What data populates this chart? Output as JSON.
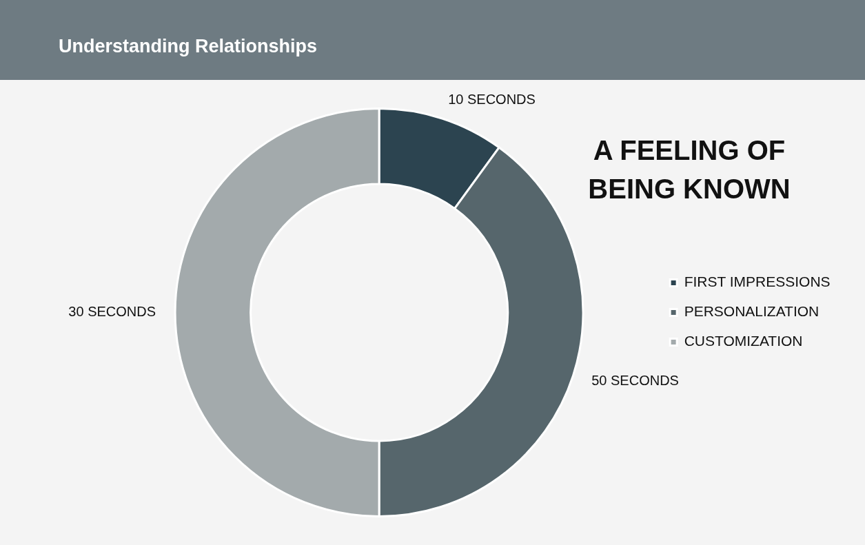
{
  "chart_data": {
    "type": "donut",
    "title": "Understanding Relationships",
    "subtitle": "A FEELING OF BEING KNOWN",
    "categories": [
      "FIRST IMPRESSIONS",
      "PERSONALIZATION",
      "CUSTOMIZATION"
    ],
    "values": [
      10,
      40,
      50
    ],
    "colors": [
      "#2c4450",
      "#56666c",
      "#a3aaac"
    ],
    "annotations": [
      {
        "text": "10 SECONDS",
        "x": "FIRST IMPRESSIONS"
      },
      {
        "text": "50 SECONDS",
        "x": "PERSONALIZATION"
      },
      {
        "text": "30 SECONDS",
        "x": "CUSTOMIZATION"
      }
    ],
    "legend": "right"
  }
}
